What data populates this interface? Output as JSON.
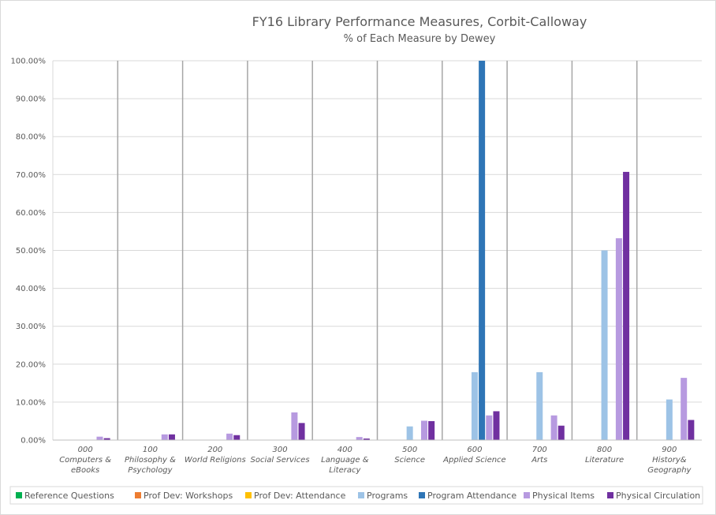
{
  "chart_data": {
    "type": "bar",
    "title": "FY16 Library Performance Measures, Corbit-Calloway",
    "subtitle": "% of Each Measure by Dewey",
    "xlabel": "",
    "ylabel": "",
    "ylim": [
      0,
      100
    ],
    "y_ticks": [
      "0.00%",
      "10.00%",
      "20.00%",
      "30.00%",
      "40.00%",
      "50.00%",
      "60.00%",
      "70.00%",
      "80.00%",
      "90.00%",
      "100.00%"
    ],
    "grid": true,
    "legend_position": "bottom",
    "categories": [
      [
        "000",
        "Computers &",
        "eBooks"
      ],
      [
        "100",
        "Philosophy &",
        "Psychology"
      ],
      [
        "200",
        "World Religions"
      ],
      [
        "300",
        "Social Services"
      ],
      [
        "400",
        "Language &",
        "Literacy"
      ],
      [
        "500",
        "Science"
      ],
      [
        "600",
        "Applied Science"
      ],
      [
        "700",
        "Arts"
      ],
      [
        "800",
        "Literature"
      ],
      [
        "900",
        "History&",
        "Geography"
      ]
    ],
    "series": [
      {
        "name": "Reference Questions",
        "color": "#00b050",
        "values": [
          0,
          0,
          0,
          0,
          0,
          0,
          0,
          0,
          0,
          0
        ]
      },
      {
        "name": "Prof Dev: Workshops",
        "color": "#ed7d31",
        "values": [
          0,
          0,
          0,
          0,
          0,
          0,
          0,
          0,
          0,
          0
        ]
      },
      {
        "name": "Prof Dev: Attendance",
        "color": "#ffc000",
        "values": [
          0,
          0,
          0,
          0,
          0,
          0,
          0,
          0,
          0,
          0
        ]
      },
      {
        "name": "Programs",
        "color": "#9dc3e6",
        "values": [
          0,
          0,
          0,
          0,
          0,
          3.6,
          17.9,
          17.9,
          50.0,
          10.7
        ]
      },
      {
        "name": "Program Attendance",
        "color": "#2e75b6",
        "values": [
          0,
          0,
          0,
          0,
          0,
          0,
          100.0,
          0,
          0,
          0
        ]
      },
      {
        "name": "Physical Items",
        "color": "#b79ae0",
        "values": [
          0.9,
          1.5,
          1.7,
          7.3,
          0.8,
          5.1,
          6.5,
          6.5,
          53.2,
          16.4
        ]
      },
      {
        "name": "Physical Circulation",
        "color": "#7030a0",
        "values": [
          0.5,
          1.5,
          1.3,
          4.5,
          0.4,
          5.0,
          7.6,
          3.8,
          70.7,
          5.3
        ]
      }
    ]
  }
}
